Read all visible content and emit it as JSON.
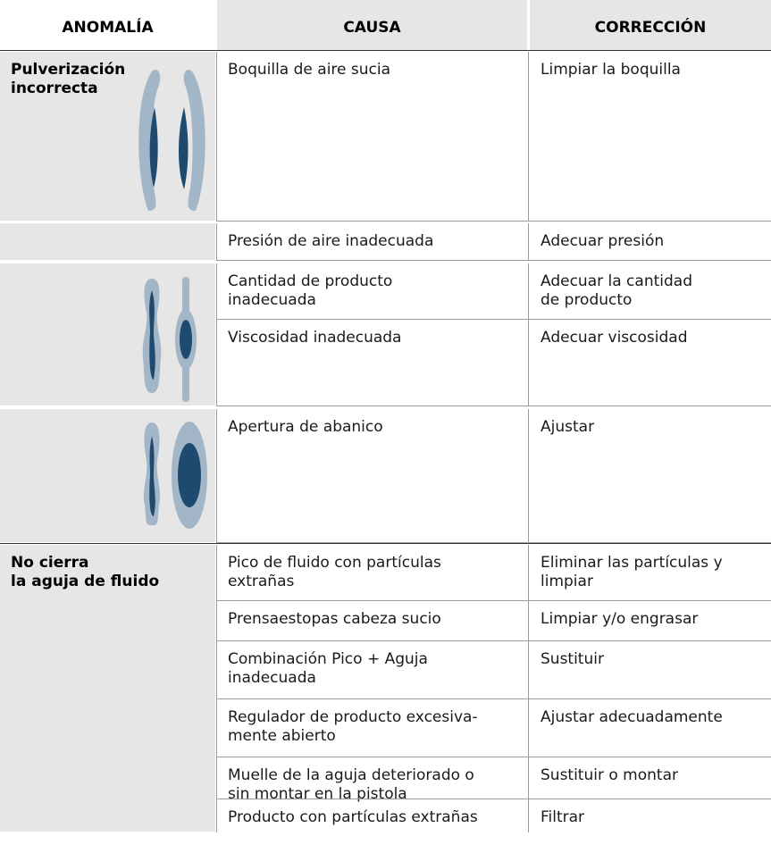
{
  "table": {
    "columns": [
      "ANOMALÍA",
      "CAUSA",
      "CORRECCIÓN"
    ],
    "groups": [
      {
        "anomaly": "Pulverización\nincorrecta",
        "rows": [
          {
            "cause": "Boquilla de aire sucia",
            "fix": "Limpiar la boquilla"
          }
        ]
      },
      {
        "rows": [
          {
            "cause": "Presión de aire inadecuada",
            "fix": "Adecuar presión"
          }
        ]
      },
      {
        "rows": [
          {
            "cause": "Cantidad de producto\ninadecuada",
            "fix": "Adecuar la cantidad\nde producto"
          },
          {
            "cause": "Viscosidad inadecuada",
            "fix": "Adecuar viscosidad"
          }
        ]
      },
      {
        "rows": [
          {
            "cause": "Apertura de abanico",
            "fix": "Ajustar"
          }
        ]
      },
      {
        "anomaly": "No cierra\nla aguja de fluido",
        "rows": [
          {
            "cause": "Pico de fluido con partículas\nextrañas",
            "fix": "Eliminar las partículas y\nlimpiar"
          },
          {
            "cause": "Prensaestopas cabeza sucio",
            "fix": "Limpiar y/o engrasar"
          },
          {
            "cause": "Combinación Pico + Aguja\ninadecuada",
            "fix": "Sustituir"
          },
          {
            "cause": "Regulador de producto excesiva-\nmente abierto",
            "fix": "Ajustar adecuadamente"
          },
          {
            "cause": "Muelle de la aguja deteriorado o\nsin montar en la pistola",
            "fix": "Sustituir o montar"
          },
          {
            "cause": "Producto con partículas extrañas",
            "fix": "Filtrar"
          }
        ]
      }
    ]
  }
}
